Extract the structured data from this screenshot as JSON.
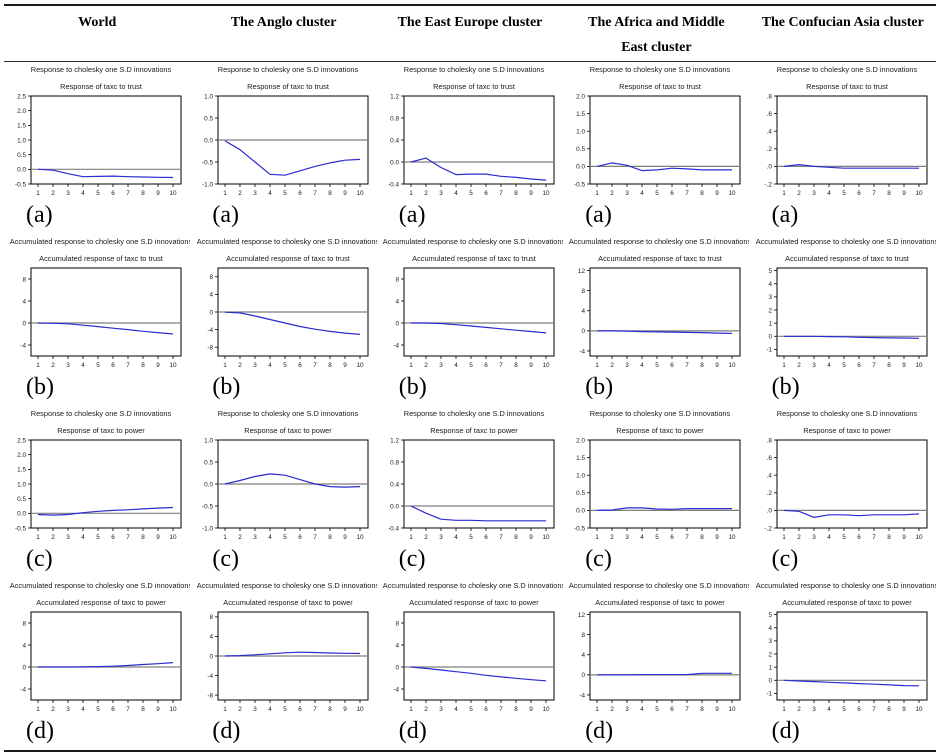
{
  "figure": {
    "columns": [
      "World",
      "The Anglo cluster",
      "The East Europe cluster",
      "The Africa and Middle East cluster",
      "The Confucian Asia cluster"
    ]
  },
  "colors": {
    "line": "#2b2bd0",
    "zero_line": "#7f7f7f",
    "frame": "#000000"
  },
  "chart_data": [
    {
      "type": "line",
      "row": "a",
      "column": "World",
      "panel_label": "(a)",
      "title": "Response to cholesky one S.D innovations",
      "subtitle": "Response of taxc to trust",
      "x": [
        1,
        2,
        3,
        4,
        5,
        6,
        7,
        8,
        9,
        10
      ],
      "values": [
        0.0,
        -0.03,
        -0.15,
        -0.25,
        -0.24,
        -0.23,
        -0.25,
        -0.26,
        -0.27,
        -0.28
      ],
      "ylim": [
        -0.5,
        2.5
      ],
      "ytick_values": [
        2.5,
        2.0,
        1.5,
        1.0,
        0.5,
        0.0,
        -0.5
      ],
      "ytick_labels": [
        "2.5",
        "2.0",
        "1.5",
        "1.0",
        "0.5",
        "0.0",
        "-0.5"
      ]
    },
    {
      "type": "line",
      "row": "a",
      "column": "The Anglo cluster",
      "panel_label": "(a)",
      "title": "Response to cholesky one S.D innovations",
      "subtitle": "Response of taxc to trust",
      "x": [
        1,
        2,
        3,
        4,
        5,
        6,
        7,
        8,
        9,
        10
      ],
      "values": [
        -0.02,
        -0.22,
        -0.5,
        -0.78,
        -0.8,
        -0.7,
        -0.6,
        -0.52,
        -0.46,
        -0.44
      ],
      "ylim": [
        -1.0,
        1.0
      ],
      "ytick_values": [
        1.0,
        0.5,
        0.0,
        -0.5,
        -1.0
      ],
      "ytick_labels": [
        "1.0",
        "0.5",
        "0.0",
        "-0.5",
        "-1.0"
      ]
    },
    {
      "type": "line",
      "row": "a",
      "column": "The East Europe cluster",
      "panel_label": "(a)",
      "title": "Response to cholesky one S.D innovations",
      "subtitle": "Response of taxc to trust",
      "x": [
        1,
        2,
        3,
        4,
        5,
        6,
        7,
        8,
        9,
        10
      ],
      "values": [
        0.0,
        0.07,
        -0.1,
        -0.23,
        -0.22,
        -0.22,
        -0.26,
        -0.28,
        -0.31,
        -0.33
      ],
      "ylim": [
        -0.4,
        1.2
      ],
      "ytick_values": [
        1.2,
        0.8,
        0.4,
        0.0,
        -0.4
      ],
      "ytick_labels": [
        "1.2",
        "0.8",
        "0.4",
        "0.0",
        "-0.4"
      ]
    },
    {
      "type": "line",
      "row": "a",
      "column": "The Africa and Middle East cluster",
      "panel_label": "(a)",
      "title": "Response to cholesky one S.D innovations",
      "subtitle": "Response of taxc to trust",
      "x": [
        1,
        2,
        3,
        4,
        5,
        6,
        7,
        8,
        9,
        10
      ],
      "values": [
        0.0,
        0.1,
        0.03,
        -0.12,
        -0.1,
        -0.05,
        -0.07,
        -0.1,
        -0.1,
        -0.1
      ],
      "ylim": [
        -0.5,
        2.0
      ],
      "ytick_values": [
        2.0,
        1.5,
        1.0,
        0.5,
        0.0,
        -0.5
      ],
      "ytick_labels": [
        "2.0",
        "1.5",
        "1.0",
        "0.5",
        "0.0",
        "-0.5"
      ]
    },
    {
      "type": "line",
      "row": "a",
      "column": "The Confucian Asia cluster",
      "panel_label": "(a)",
      "title": "Response to cholesky one S.D innovations",
      "subtitle": "Response of taxc to trust",
      "x": [
        1,
        2,
        3,
        4,
        5,
        6,
        7,
        8,
        9,
        10
      ],
      "values": [
        0.0,
        0.02,
        0.0,
        -0.01,
        -0.02,
        -0.02,
        -0.02,
        -0.02,
        -0.02,
        -0.02
      ],
      "ylim": [
        -0.2,
        0.8
      ],
      "ytick_values": [
        0.8,
        0.6,
        0.4,
        0.2,
        0.0,
        -0.2
      ],
      "ytick_labels": [
        ".8",
        ".6",
        ".4",
        ".2",
        ".0",
        "-.2"
      ]
    },
    {
      "type": "line",
      "row": "b",
      "column": "World",
      "panel_label": "(b)",
      "title": "Accumulated response to cholesky one S.D innovations",
      "subtitle": "Accumulated response of taxc to trust",
      "x": [
        1,
        2,
        3,
        4,
        5,
        6,
        7,
        8,
        9,
        10
      ],
      "values": [
        0.0,
        -0.05,
        -0.15,
        -0.4,
        -0.65,
        -0.95,
        -1.2,
        -1.5,
        -1.75,
        -2.0
      ],
      "ylim": [
        -6,
        10
      ],
      "ytick_values": [
        8,
        4,
        0,
        -4
      ],
      "ytick_labels": [
        "8",
        "4",
        "0",
        "-4"
      ]
    },
    {
      "type": "line",
      "row": "b",
      "column": "The Anglo cluster",
      "panel_label": "(b)",
      "title": "Accumulated response to cholesky one S.D innovations",
      "subtitle": "Accumulated response of taxc to trust",
      "x": [
        1,
        2,
        3,
        4,
        5,
        6,
        7,
        8,
        9,
        10
      ],
      "values": [
        -0.05,
        -0.2,
        -0.9,
        -1.7,
        -2.5,
        -3.3,
        -3.9,
        -4.4,
        -4.8,
        -5.1
      ],
      "ylim": [
        -10,
        10
      ],
      "ytick_values": [
        8,
        4,
        0,
        -4,
        -8
      ],
      "ytick_labels": [
        "8",
        "4",
        "0",
        "-4",
        "-8"
      ]
    },
    {
      "type": "line",
      "row": "b",
      "column": "The East Europe cluster",
      "panel_label": "(b)",
      "title": "Accumulated response to cholesky one S.D innovations",
      "subtitle": "Accumulated response of taxc to trust",
      "x": [
        1,
        2,
        3,
        4,
        5,
        6,
        7,
        8,
        9,
        10
      ],
      "values": [
        0.0,
        0.0,
        -0.1,
        -0.3,
        -0.55,
        -0.8,
        -1.05,
        -1.3,
        -1.55,
        -1.8
      ],
      "ylim": [
        -6,
        10
      ],
      "ytick_values": [
        8,
        4,
        0,
        -4
      ],
      "ytick_labels": [
        "8",
        "4",
        "0",
        "-4"
      ]
    },
    {
      "type": "line",
      "row": "b",
      "column": "The Africa and Middle East cluster",
      "panel_label": "(b)",
      "title": "Accumulated response to cholesky one S.D innovations",
      "subtitle": "Accumulated response of taxc to trust",
      "x": [
        1,
        2,
        3,
        4,
        5,
        6,
        7,
        8,
        9,
        10
      ],
      "values": [
        0.0,
        0.0,
        -0.05,
        -0.15,
        -0.2,
        -0.25,
        -0.3,
        -0.35,
        -0.45,
        -0.5
      ],
      "ylim": [
        -5,
        12.5
      ],
      "ytick_values": [
        12,
        8,
        4,
        0,
        -4
      ],
      "ytick_labels": [
        "12",
        "8",
        "4",
        "0",
        "-4"
      ]
    },
    {
      "type": "line",
      "row": "b",
      "column": "The Confucian Asia cluster",
      "panel_label": "(b)",
      "title": "Accumulated response to cholesky one S.D innovations",
      "subtitle": "Accumulated response of taxc to trust",
      "x": [
        1,
        2,
        3,
        4,
        5,
        6,
        7,
        8,
        9,
        10
      ],
      "values": [
        0.0,
        0.0,
        0.0,
        -0.02,
        -0.04,
        -0.08,
        -0.1,
        -0.12,
        -0.13,
        -0.15
      ],
      "ylim": [
        -1.5,
        5.2
      ],
      "ytick_values": [
        5,
        4,
        3,
        2,
        1,
        0,
        -1
      ],
      "ytick_labels": [
        "5",
        "4",
        "3",
        "2",
        "1",
        "0",
        "-1"
      ]
    },
    {
      "type": "line",
      "row": "c",
      "column": "World",
      "panel_label": "(c)",
      "title": "Response to cholesky one S.D innovations",
      "subtitle": "Response of taxc to power",
      "x": [
        1,
        2,
        3,
        4,
        5,
        6,
        7,
        8,
        9,
        10
      ],
      "values": [
        -0.04,
        -0.06,
        -0.04,
        0.02,
        0.07,
        0.1,
        0.12,
        0.15,
        0.18,
        0.2
      ],
      "ylim": [
        -0.5,
        2.5
      ],
      "ytick_values": [
        2.5,
        2.0,
        1.5,
        1.0,
        0.5,
        0.0,
        -0.5
      ],
      "ytick_labels": [
        "2.5",
        "2.0",
        "1.5",
        "1.0",
        "0.5",
        "0.0",
        "-0.5"
      ]
    },
    {
      "type": "line",
      "row": "c",
      "column": "The Anglo cluster",
      "panel_label": "(c)",
      "title": "Response to cholesky one S.D innovations",
      "subtitle": "Response of taxc to power",
      "x": [
        1,
        2,
        3,
        4,
        5,
        6,
        7,
        8,
        9,
        10
      ],
      "values": [
        0.0,
        0.08,
        0.17,
        0.23,
        0.2,
        0.1,
        0.0,
        -0.06,
        -0.07,
        -0.06
      ],
      "ylim": [
        -1.0,
        1.0
      ],
      "ytick_values": [
        1.0,
        0.5,
        0.0,
        -0.5,
        -1.0
      ],
      "ytick_labels": [
        "1.0",
        "0.5",
        "0.0",
        "-0.5",
        "-1.0"
      ]
    },
    {
      "type": "line",
      "row": "c",
      "column": "The East Europe cluster",
      "panel_label": "(c)",
      "title": "Response to cholesky one S.D innovations",
      "subtitle": "Response of taxc to power",
      "x": [
        1,
        2,
        3,
        4,
        5,
        6,
        7,
        8,
        9,
        10
      ],
      "values": [
        0.0,
        -0.13,
        -0.24,
        -0.26,
        -0.26,
        -0.27,
        -0.27,
        -0.27,
        -0.27,
        -0.27
      ],
      "ylim": [
        -0.4,
        1.2
      ],
      "ytick_values": [
        1.2,
        0.8,
        0.4,
        0.0,
        -0.4
      ],
      "ytick_labels": [
        "1.2",
        "0.8",
        "0.4",
        "0.0",
        "-0.4"
      ]
    },
    {
      "type": "line",
      "row": "c",
      "column": "The Africa and Middle East cluster",
      "panel_label": "(c)",
      "title": "Response to cholesky one S.D innovations",
      "subtitle": "Response of taxc to power",
      "x": [
        1,
        2,
        3,
        4,
        5,
        6,
        7,
        8,
        9,
        10
      ],
      "values": [
        0.0,
        0.01,
        0.07,
        0.07,
        0.04,
        0.03,
        0.05,
        0.05,
        0.05,
        0.05
      ],
      "ylim": [
        -0.5,
        2.0
      ],
      "ytick_values": [
        2.0,
        1.5,
        1.0,
        0.5,
        0.0,
        -0.5
      ],
      "ytick_labels": [
        "2.0",
        "1.5",
        "1.0",
        "0.5",
        "0.0",
        "-0.5"
      ]
    },
    {
      "type": "line",
      "row": "c",
      "column": "The Confucian Asia cluster",
      "panel_label": "(c)",
      "title": "Response to cholesky one S.D innovations",
      "subtitle": "Response of taxc to power",
      "x": [
        1,
        2,
        3,
        4,
        5,
        6,
        7,
        8,
        9,
        10
      ],
      "values": [
        0.0,
        -0.01,
        -0.08,
        -0.05,
        -0.05,
        -0.06,
        -0.05,
        -0.05,
        -0.05,
        -0.04
      ],
      "ylim": [
        -0.2,
        0.8
      ],
      "ytick_values": [
        0.8,
        0.6,
        0.4,
        0.2,
        0.0,
        -0.2
      ],
      "ytick_labels": [
        ".8",
        ".6",
        ".4",
        ".2",
        ".0",
        "-.2"
      ]
    },
    {
      "type": "line",
      "row": "d",
      "column": "World",
      "panel_label": "(d)",
      "title": "Accumulated response to cholesky one S.D innovations",
      "subtitle": "Accumulated response of taxc to power",
      "x": [
        1,
        2,
        3,
        4,
        5,
        6,
        7,
        8,
        9,
        10
      ],
      "values": [
        0.0,
        0.0,
        0.0,
        0.02,
        0.07,
        0.15,
        0.28,
        0.45,
        0.6,
        0.8
      ],
      "ylim": [
        -6,
        10
      ],
      "ytick_values": [
        8,
        4,
        0,
        -4
      ],
      "ytick_labels": [
        "8",
        "4",
        "0",
        "-4"
      ]
    },
    {
      "type": "line",
      "row": "d",
      "column": "The Anglo cluster",
      "panel_label": "(d)",
      "title": "Accumulated response to cholesky one S.D innovations",
      "subtitle": "Accumulated response of taxc to power",
      "x": [
        1,
        2,
        3,
        4,
        5,
        6,
        7,
        8,
        9,
        10
      ],
      "values": [
        0.0,
        0.08,
        0.25,
        0.45,
        0.65,
        0.78,
        0.72,
        0.62,
        0.55,
        0.52
      ],
      "ylim": [
        -9,
        9
      ],
      "ytick_values": [
        8,
        4,
        0,
        -4,
        -8
      ],
      "ytick_labels": [
        "8",
        "4",
        "0",
        "-4",
        "-8"
      ]
    },
    {
      "type": "line",
      "row": "d",
      "column": "The East Europe cluster",
      "panel_label": "(d)",
      "title": "Accumulated response to cholesky one S.D innovations",
      "subtitle": "Accumulated response of taxc to power",
      "x": [
        1,
        2,
        3,
        4,
        5,
        6,
        7,
        8,
        9,
        10
      ],
      "values": [
        0.0,
        -0.25,
        -0.55,
        -0.85,
        -1.15,
        -1.5,
        -1.8,
        -2.05,
        -2.3,
        -2.5
      ],
      "ylim": [
        -6,
        10
      ],
      "ytick_values": [
        8,
        4,
        0,
        -4
      ],
      "ytick_labels": [
        "8",
        "4",
        "0",
        "-4"
      ]
    },
    {
      "type": "line",
      "row": "d",
      "column": "The Africa and Middle East cluster",
      "panel_label": "(d)",
      "title": "Accumulated response to cholesky one S.D innovations",
      "subtitle": "Accumulated response of taxc to power",
      "x": [
        1,
        2,
        3,
        4,
        5,
        6,
        7,
        8,
        9,
        10
      ],
      "values": [
        0.0,
        0.0,
        0.0,
        0.05,
        0.05,
        0.05,
        0.05,
        0.3,
        0.3,
        0.3
      ],
      "ylim": [
        -5,
        12.5
      ],
      "ytick_values": [
        12,
        8,
        4,
        0,
        -4
      ],
      "ytick_labels": [
        "12",
        "8",
        "4",
        "0",
        "-4"
      ]
    },
    {
      "type": "line",
      "row": "d",
      "column": "The Confucian Asia cluster",
      "panel_label": "(d)",
      "title": "Accumulated response to cholesky one S.D innovations",
      "subtitle": "Accumulated response of taxc to power",
      "x": [
        1,
        2,
        3,
        4,
        5,
        6,
        7,
        8,
        9,
        10
      ],
      "values": [
        0.0,
        -0.05,
        -0.1,
        -0.15,
        -0.2,
        -0.25,
        -0.3,
        -0.35,
        -0.4,
        -0.42
      ],
      "ylim": [
        -1.5,
        5.2
      ],
      "ytick_values": [
        5,
        4,
        3,
        2,
        1,
        0,
        -1
      ],
      "ytick_labels": [
        "5",
        "4",
        "3",
        "2",
        "1",
        "0",
        "-1"
      ]
    }
  ]
}
